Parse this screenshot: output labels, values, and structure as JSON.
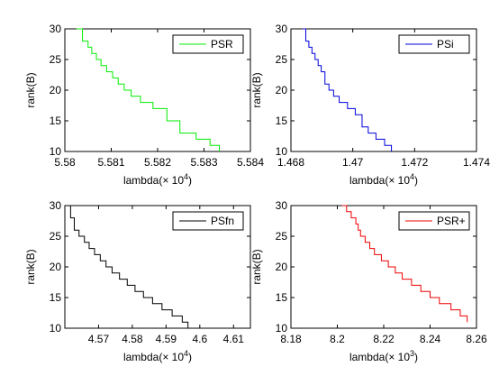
{
  "chart_data": [
    {
      "type": "line",
      "panel": "top-left",
      "xlabel": "lambda(× 10",
      "xlabel_exp": "4",
      "ylabel": "rank(B)",
      "xlim": [
        5.58,
        5.584
      ],
      "ylim": [
        10,
        30
      ],
      "xticks": [
        "5.58",
        "5.581",
        "5.582",
        "5.583",
        "5.584"
      ],
      "yticks": [
        "10",
        "15",
        "20",
        "25",
        "30"
      ],
      "xtick_values": [
        5.58,
        5.581,
        5.582,
        5.583,
        5.584
      ],
      "ytick_values": [
        10,
        15,
        20,
        25,
        30
      ],
      "legend": "PSR",
      "color": "#00ee00",
      "series": [
        {
          "name": "PSR",
          "x": [
            5.58025,
            5.58038,
            5.5805,
            5.58058,
            5.58068,
            5.58078,
            5.5809,
            5.58103,
            5.58115,
            5.58128,
            5.58143,
            5.58163,
            5.5819,
            5.5822,
            5.58248,
            5.58283,
            5.58313,
            5.58333
          ],
          "y": [
            30,
            28,
            27,
            26,
            25,
            24,
            23,
            22,
            21,
            20,
            19,
            18,
            17,
            15,
            13,
            12,
            11,
            10
          ]
        }
      ]
    },
    {
      "type": "line",
      "panel": "top-right",
      "xlabel": "lambda(× 10",
      "xlabel_exp": "4",
      "ylabel": "rank(B)",
      "xlim": [
        1.468,
        1.474
      ],
      "ylim": [
        10,
        30
      ],
      "xticks": [
        "1.468",
        "1.47",
        "1.472",
        "1.474"
      ],
      "yticks": [
        "10",
        "15",
        "20",
        "25",
        "30"
      ],
      "xtick_values": [
        1.468,
        1.47,
        1.472,
        1.474
      ],
      "ytick_values": [
        10,
        15,
        20,
        25,
        30
      ],
      "legend": "PSi",
      "color": "#0000dd",
      "series": [
        {
          "name": "PSi",
          "x": [
            1.46838,
            1.46848,
            1.46858,
            1.46868,
            1.46878,
            1.46888,
            1.46898,
            1.4691,
            1.46923,
            1.46938,
            1.46956,
            1.46983,
            1.47008,
            1.4703,
            1.4705,
            1.47075,
            1.47103,
            1.47125
          ],
          "y": [
            30,
            28,
            27,
            26,
            25,
            24,
            23,
            21,
            20,
            19,
            18,
            17,
            16,
            14,
            13,
            12,
            11,
            10
          ]
        }
      ]
    },
    {
      "type": "line",
      "panel": "bottom-left",
      "xlabel": "lambda(× 10",
      "xlabel_exp": "4",
      "ylabel": "rank(B)",
      "xlim": [
        4.56,
        4.615
      ],
      "ylim": [
        10,
        30
      ],
      "xticks": [
        "4.57",
        "4.58",
        "4.59",
        "4.6",
        "4.61"
      ],
      "yticks": [
        "10",
        "15",
        "20",
        "25",
        "30"
      ],
      "xtick_values": [
        4.57,
        4.58,
        4.59,
        4.6,
        4.61
      ],
      "ytick_values": [
        10,
        15,
        20,
        25,
        30
      ],
      "legend": "PSfn",
      "color": "#000000",
      "series": [
        {
          "name": "PSfn",
          "x": [
            4.5605,
            4.5617,
            4.5628,
            4.5642,
            4.5658,
            4.5672,
            4.5688,
            4.5705,
            4.5722,
            4.574,
            4.5762,
            4.5785,
            4.5808,
            4.5833,
            4.586,
            4.5888,
            4.5918,
            4.5948,
            4.5965
          ],
          "y": [
            30,
            28,
            26,
            25,
            24,
            23,
            22,
            21,
            20,
            19,
            18,
            17,
            16,
            15,
            14,
            13,
            12,
            11,
            10
          ]
        }
      ]
    },
    {
      "type": "line",
      "panel": "bottom-right",
      "xlabel": "lambda(× 10",
      "xlabel_exp": "3",
      "ylabel": "rank(B)",
      "xlim": [
        8.18,
        8.26
      ],
      "ylim": [
        10,
        30
      ],
      "xticks": [
        "8.18",
        "8.2",
        "8.22",
        "8.24",
        "8.26"
      ],
      "yticks": [
        "10",
        "15",
        "20",
        "25",
        "30"
      ],
      "xtick_values": [
        8.18,
        8.2,
        8.22,
        8.24,
        8.26
      ],
      "ytick_values": [
        10,
        15,
        20,
        25,
        30
      ],
      "legend": "PSR+",
      "color": "#ee0000",
      "series": [
        {
          "name": "PSR+",
          "x": [
            8.202,
            8.204,
            8.206,
            8.208,
            8.209,
            8.21,
            8.212,
            8.214,
            8.216,
            8.219,
            8.222,
            8.225,
            8.228,
            8.232,
            8.236,
            8.24,
            8.244,
            8.249,
            8.253,
            8.256
          ],
          "y": [
            30,
            29,
            28,
            27,
            26,
            25,
            24,
            23,
            22,
            21,
            20,
            19,
            18,
            17,
            16,
            15,
            14,
            13,
            12,
            11
          ]
        }
      ]
    }
  ]
}
